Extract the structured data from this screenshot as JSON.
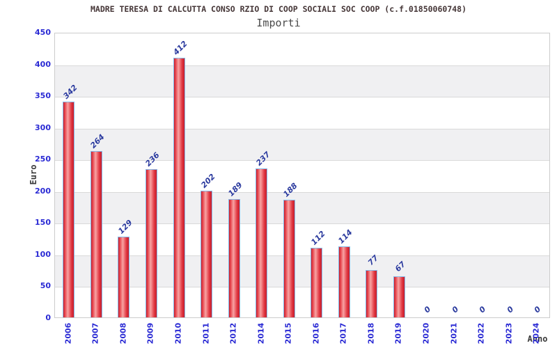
{
  "header": {
    "title": "MADRE TERESA DI CALCUTTA CONSO RZIO DI COOP SOCIALI SOC COOP (c.f.01850060748)",
    "subtitle": "Importi"
  },
  "axes": {
    "y_title": "Euro",
    "x_title": "Anno"
  },
  "chart_data": {
    "type": "bar",
    "title": "MADRE TERESA DI CALCUTTA CONSO RZIO DI COOP SOCIALI SOC COOP (c.f.01850060748)",
    "subtitle": "Importi",
    "xlabel": "Anno",
    "ylabel": "Euro",
    "categories": [
      "2006",
      "2007",
      "2008",
      "2009",
      "2010",
      "2011",
      "2012",
      "2014",
      "2015",
      "2016",
      "2017",
      "2018",
      "2019",
      "2020",
      "2021",
      "2022",
      "2023",
      "2024"
    ],
    "values": [
      342,
      264,
      129,
      236,
      412,
      202,
      189,
      237,
      188,
      112,
      114,
      77,
      67,
      0,
      0,
      0,
      0,
      0
    ],
    "ylim": [
      0,
      450
    ],
    "y_ticks": [
      450,
      400,
      350,
      300,
      250,
      200,
      150,
      100,
      50,
      0
    ],
    "grid": true,
    "legend_position": "none",
    "colors": {
      "bar_edge": "#c91d2b",
      "bar_highlight": "#f7a3a3",
      "bar_border": "#85b9e8",
      "tick_label": "#2a2ad4",
      "value_label": "#2b3a9e",
      "band_even": "#ffffff",
      "band_odd": "#f0f0f2",
      "gridline": "#d9d9d9",
      "title": "#453637"
    }
  }
}
